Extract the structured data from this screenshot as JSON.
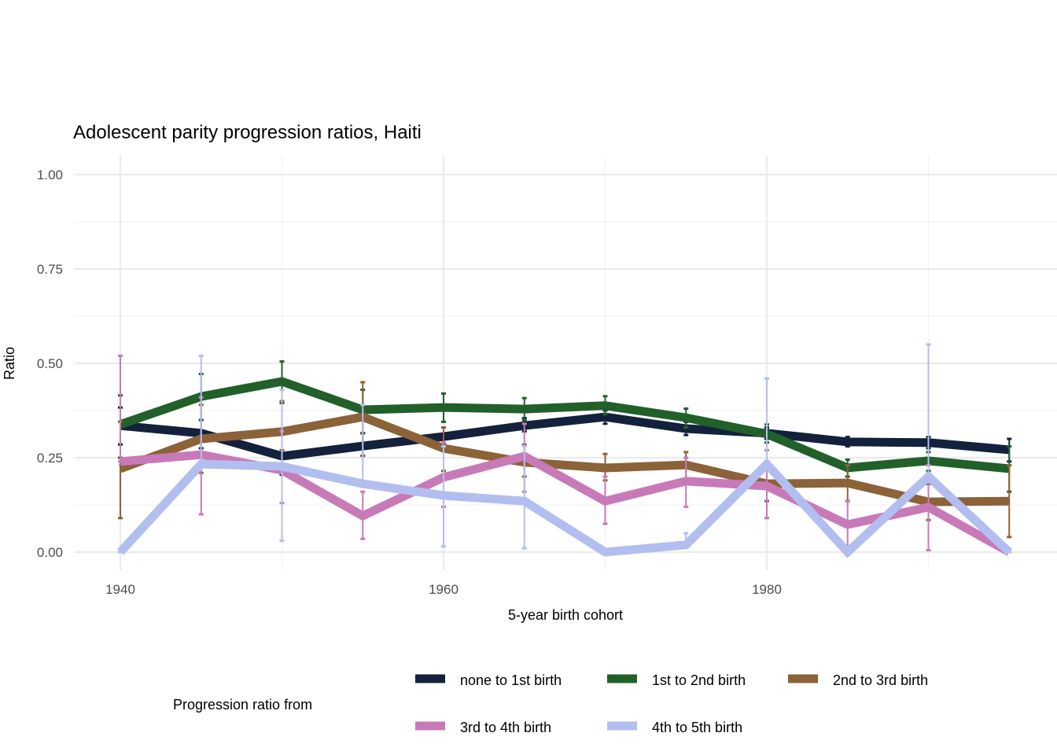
{
  "chart_data": {
    "type": "line",
    "title": "Adolescent parity progression ratios,  Haiti",
    "xlabel": "5-year birth cohort",
    "ylabel": "Ratio",
    "xlim": [
      1937,
      1997
    ],
    "ylim": [
      0,
      1
    ],
    "x_ticks": [
      1940,
      1960,
      1980
    ],
    "x_tick_labels": [
      "1940",
      "1960",
      "1980"
    ],
    "y_ticks": [
      0,
      0.25,
      0.5,
      0.75,
      1.0
    ],
    "y_tick_labels": [
      "0.00",
      "0.25",
      "0.50",
      "0.75",
      "1.00"
    ],
    "grid": true,
    "legend_title": "Progression ratio from",
    "legend_position": "bottom",
    "x": [
      1940,
      1945,
      1950,
      1955,
      1960,
      1965,
      1970,
      1975,
      1980,
      1985,
      1990,
      1995
    ],
    "series": [
      {
        "name": "none to 1st birth",
        "color": "#14213d",
        "values": [
          0.335,
          0.315,
          0.254,
          0.281,
          0.306,
          0.335,
          0.358,
          0.327,
          0.315,
          0.292,
          0.29,
          0.271
        ],
        "low": [
          0.285,
          0.275,
          0.205,
          0.255,
          0.285,
          0.32,
          0.34,
          0.31,
          0.3,
          0.28,
          0.275,
          0.24
        ],
        "high": [
          0.383,
          0.35,
          0.395,
          0.315,
          0.33,
          0.355,
          0.375,
          0.345,
          0.33,
          0.305,
          0.305,
          0.3
        ]
      },
      {
        "name": "1st to 2nd birth",
        "color": "#22602a",
        "values": [
          0.338,
          0.412,
          0.452,
          0.377,
          0.383,
          0.379,
          0.388,
          0.356,
          0.313,
          0.223,
          0.242,
          0.221
        ],
        "low": [
          0.25,
          0.35,
          0.395,
          0.315,
          0.345,
          0.35,
          0.365,
          0.33,
          0.29,
          0.2,
          0.215,
          0.16
        ],
        "high": [
          0.415,
          0.472,
          0.505,
          0.43,
          0.42,
          0.408,
          0.413,
          0.38,
          0.338,
          0.245,
          0.265,
          0.28
        ]
      },
      {
        "name": "2nd to 3rd birth",
        "color": "#8c6239",
        "values": [
          0.221,
          0.3,
          0.319,
          0.358,
          0.275,
          0.238,
          0.223,
          0.231,
          0.181,
          0.183,
          0.133,
          0.135
        ],
        "low": [
          0.09,
          0.21,
          0.27,
          0.255,
          0.215,
          0.2,
          0.19,
          0.19,
          0.135,
          0.135,
          0.085,
          0.04
        ],
        "high": [
          0.345,
          0.39,
          0.4,
          0.45,
          0.33,
          0.285,
          0.26,
          0.265,
          0.23,
          0.23,
          0.18,
          0.23
        ]
      },
      {
        "name": "3rd to 4th birth",
        "color": "#c879b8",
        "values": [
          0.24,
          0.258,
          0.217,
          0.096,
          0.198,
          0.254,
          0.135,
          0.188,
          0.175,
          0.073,
          0.119,
          0.0
        ],
        "low": [
          0.24,
          0.1,
          0.13,
          0.035,
          0.12,
          0.16,
          0.075,
          0.12,
          0.09,
          0.015,
          0.005,
          0.0
        ],
        "high": [
          0.52,
          0.41,
          0.32,
          0.16,
          0.29,
          0.34,
          0.2,
          0.25,
          0.27,
          0.135,
          0.23,
          0.0
        ]
      },
      {
        "name": "4th to 5th birth",
        "color": "#b3bef0",
        "values": [
          0.0,
          0.233,
          0.227,
          0.181,
          0.15,
          0.135,
          0.0,
          0.019,
          0.233,
          0.0,
          0.2,
          0.0
        ],
        "low": [
          0.0,
          0.23,
          0.03,
          0.18,
          0.015,
          0.01,
          0.0,
          0.02,
          0.23,
          0.0,
          0.2,
          0.0
        ],
        "high": [
          0.0,
          0.52,
          0.43,
          0.39,
          0.28,
          0.28,
          0.0,
          0.05,
          0.46,
          0.0,
          0.55,
          0.0
        ]
      }
    ]
  }
}
